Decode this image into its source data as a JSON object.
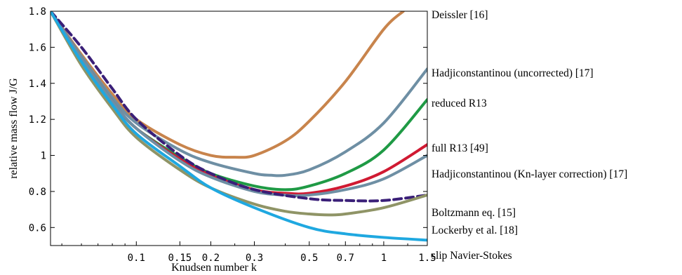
{
  "chart_data": {
    "type": "line",
    "xlabel": "Knudsen number k",
    "ylabel": "relative mass flow J/G",
    "xscale": "log",
    "xlim": [
      0.045,
      1.5
    ],
    "ylim": [
      0.5,
      1.8
    ],
    "xticks": [
      {
        "value": 0.1,
        "label": "0.1"
      },
      {
        "value": 0.15,
        "label": "0.15"
      },
      {
        "value": 0.2,
        "label": "0.2"
      },
      {
        "value": 0.3,
        "label": "0.3"
      },
      {
        "value": 0.5,
        "label": "0.5"
      },
      {
        "value": 0.7,
        "label": "0.7"
      },
      {
        "value": 1.0,
        "label": "1"
      },
      {
        "value": 1.5,
        "label": "1.5"
      }
    ],
    "yticks": [
      {
        "value": 0.6,
        "label": "0.6"
      },
      {
        "value": 0.8,
        "label": "0.8"
      },
      {
        "value": 1.0,
        "label": "1"
      },
      {
        "value": 1.2,
        "label": "1.2"
      },
      {
        "value": 1.4,
        "label": "1.4"
      },
      {
        "value": 1.6,
        "label": "1.6"
      },
      {
        "value": 1.8,
        "label": "1.8"
      }
    ],
    "legend": "labels at right end of each curve",
    "series": [
      {
        "name": "Deissler [16]",
        "color": "#c8844c",
        "dash": false,
        "x": [
          0.045,
          0.06,
          0.08,
          0.1,
          0.15,
          0.2,
          0.25,
          0.3,
          0.4,
          0.5,
          0.7,
          1.0,
          1.2
        ],
        "y": [
          1.8,
          1.56,
          1.34,
          1.2,
          1.06,
          1.0,
          0.99,
          1.0,
          1.08,
          1.19,
          1.41,
          1.7,
          1.8
        ]
      },
      {
        "name": "Hadjiconstantinou (uncorrected) [17]",
        "color": "#6e8fa4",
        "dash": false,
        "x": [
          0.045,
          0.06,
          0.08,
          0.1,
          0.15,
          0.2,
          0.3,
          0.35,
          0.4,
          0.5,
          0.7,
          1.0,
          1.5
        ],
        "y": [
          1.8,
          1.55,
          1.32,
          1.18,
          1.03,
          0.96,
          0.9,
          0.89,
          0.89,
          0.92,
          1.02,
          1.18,
          1.48
        ]
      },
      {
        "name": "reduced R13",
        "color": "#1f9a45",
        "dash": false,
        "x": [
          0.045,
          0.06,
          0.08,
          0.1,
          0.15,
          0.2,
          0.3,
          0.4,
          0.5,
          0.7,
          1.0,
          1.5
        ],
        "y": [
          1.8,
          1.54,
          1.3,
          1.15,
          0.99,
          0.9,
          0.83,
          0.81,
          0.83,
          0.9,
          1.03,
          1.31
        ]
      },
      {
        "name": "full R13 [49]",
        "color": "#d01a32",
        "dash": false,
        "x": [
          0.045,
          0.06,
          0.08,
          0.1,
          0.15,
          0.2,
          0.3,
          0.4,
          0.5,
          0.7,
          1.0,
          1.5
        ],
        "y": [
          1.8,
          1.54,
          1.3,
          1.15,
          0.98,
          0.89,
          0.81,
          0.79,
          0.79,
          0.83,
          0.91,
          1.06
        ]
      },
      {
        "name": "Hadjiconstantinou (Kn-layer correction) [17]",
        "color": "#6e8fa4",
        "dash": false,
        "x": [
          0.045,
          0.06,
          0.08,
          0.1,
          0.15,
          0.2,
          0.3,
          0.4,
          0.5,
          0.7,
          1.0,
          1.5
        ],
        "y": [
          1.8,
          1.54,
          1.3,
          1.15,
          0.97,
          0.88,
          0.8,
          0.78,
          0.78,
          0.81,
          0.87,
          1.0
        ]
      },
      {
        "name": "Boltzmann eq. [15]",
        "color": "#3a1f78",
        "dash": true,
        "x": [
          0.045,
          0.06,
          0.08,
          0.1,
          0.15,
          0.2,
          0.3,
          0.5,
          0.7,
          1.0,
          1.5
        ],
        "y": [
          1.8,
          1.6,
          1.37,
          1.2,
          1.0,
          0.9,
          0.81,
          0.76,
          0.75,
          0.75,
          0.78
        ]
      },
      {
        "name": "Lockerby et al. [18]",
        "color": "#8f9466",
        "dash": false,
        "x": [
          0.045,
          0.06,
          0.08,
          0.1,
          0.15,
          0.2,
          0.3,
          0.4,
          0.5,
          0.6,
          0.7,
          1.0,
          1.5
        ],
        "y": [
          1.8,
          1.5,
          1.26,
          1.1,
          0.92,
          0.82,
          0.73,
          0.69,
          0.675,
          0.67,
          0.675,
          0.71,
          0.78
        ]
      },
      {
        "name": "slip Navier-Stokes",
        "color": "#1fa8e0",
        "dash": false,
        "x": [
          0.045,
          0.06,
          0.08,
          0.1,
          0.15,
          0.2,
          0.3,
          0.5,
          0.7,
          1.0,
          1.5
        ],
        "y": [
          1.8,
          1.52,
          1.28,
          1.12,
          0.94,
          0.82,
          0.71,
          0.6,
          0.565,
          0.545,
          0.53
        ]
      }
    ]
  }
}
